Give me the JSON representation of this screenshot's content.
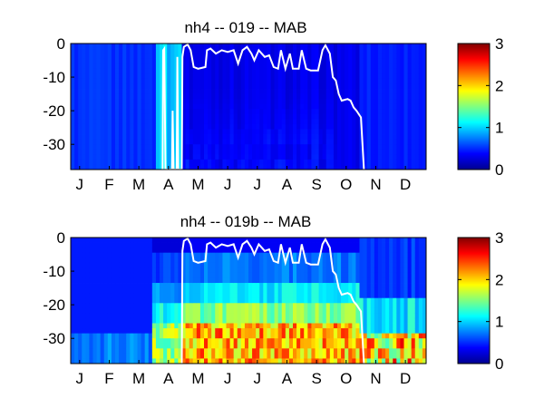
{
  "chart_data": [
    {
      "type": "heatmap",
      "title": "nh4 -- 019 -- MAB",
      "xlabel": "",
      "ylabel": "",
      "x_tick_labels": [
        "J",
        "F",
        "M",
        "A",
        "M",
        "J",
        "J",
        "A",
        "S",
        "O",
        "N",
        "D"
      ],
      "y_tick_labels": [
        "0",
        "-10",
        "-20",
        "-30"
      ],
      "y_ticks": [
        0,
        -10,
        -20,
        -30
      ],
      "ylim": [
        -37.5,
        0
      ],
      "colorbar": {
        "ticks": [
          0,
          1,
          2,
          3
        ],
        "clim": [
          0,
          3
        ],
        "colormap": "jet"
      },
      "contour_line": {
        "color": "#ffffff",
        "points": [
          [
            3.1,
            -37.5
          ],
          [
            3.12,
            -2
          ],
          [
            3.16,
            -1.5
          ],
          [
            3.2,
            -37.5
          ],
          [
            3.42,
            -37.5
          ],
          [
            3.44,
            -20
          ],
          [
            3.47,
            -37.5
          ],
          [
            3.58,
            -37.5
          ],
          [
            3.6,
            -4
          ],
          [
            3.63,
            -37.5
          ],
          [
            3.75,
            -37.5
          ],
          [
            3.77,
            -4
          ],
          [
            3.82,
            -1
          ],
          [
            3.95,
            -0.3
          ],
          [
            4.05,
            -2
          ],
          [
            4.15,
            -7
          ],
          [
            4.3,
            -7.5
          ],
          [
            4.55,
            -7
          ],
          [
            4.6,
            -2
          ],
          [
            4.72,
            -1.5
          ],
          [
            4.9,
            -3
          ],
          [
            5.1,
            -2
          ],
          [
            5.3,
            -2.5
          ],
          [
            5.5,
            -2
          ],
          [
            5.65,
            -6
          ],
          [
            5.8,
            -2
          ],
          [
            5.95,
            -1
          ],
          [
            6.1,
            -3
          ],
          [
            6.2,
            -5
          ],
          [
            6.35,
            -2
          ],
          [
            6.55,
            -4
          ],
          [
            6.7,
            -3.5
          ],
          [
            6.85,
            -7
          ],
          [
            7.0,
            -7.5
          ],
          [
            7.1,
            -2
          ],
          [
            7.25,
            -7.5
          ],
          [
            7.4,
            -3
          ],
          [
            7.5,
            -7.5
          ],
          [
            7.7,
            -7.5
          ],
          [
            7.8,
            -2
          ],
          [
            7.95,
            -7.5
          ],
          [
            8.1,
            -8
          ],
          [
            8.35,
            -8
          ],
          [
            8.5,
            -2
          ],
          [
            8.6,
            -0.5
          ],
          [
            8.75,
            -3
          ],
          [
            8.85,
            -10
          ],
          [
            8.95,
            -11
          ],
          [
            9.05,
            -15
          ],
          [
            9.15,
            -17
          ],
          [
            9.35,
            -16.5
          ],
          [
            9.45,
            -17
          ],
          [
            9.55,
            -19
          ],
          [
            9.65,
            -20
          ],
          [
            9.8,
            -22
          ],
          [
            9.9,
            -37.5
          ]
        ]
      }
    },
    {
      "type": "heatmap",
      "title": "nh4 -- 019b -- MAB",
      "xlabel": "",
      "ylabel": "",
      "x_tick_labels": [
        "J",
        "F",
        "M",
        "A",
        "M",
        "J",
        "J",
        "A",
        "S",
        "O",
        "N",
        "D"
      ],
      "y_tick_labels": [
        "0",
        "-10",
        "-20",
        "-30"
      ],
      "y_ticks": [
        0,
        -10,
        -20,
        -30
      ],
      "ylim": [
        -37.5,
        0
      ],
      "colorbar": {
        "ticks": [
          0,
          1,
          2,
          3
        ],
        "clim": [
          0,
          3
        ],
        "colormap": "jet"
      },
      "contour_line": {
        "color": "#ffffff",
        "points": [
          [
            3.75,
            -37.5
          ],
          [
            3.77,
            -4
          ],
          [
            3.82,
            -1
          ],
          [
            3.95,
            -0.3
          ],
          [
            4.05,
            -2
          ],
          [
            4.15,
            -7
          ],
          [
            4.3,
            -7.5
          ],
          [
            4.55,
            -7
          ],
          [
            4.6,
            -2
          ],
          [
            4.72,
            -1.5
          ],
          [
            4.9,
            -3
          ],
          [
            5.1,
            -2
          ],
          [
            5.3,
            -2.5
          ],
          [
            5.5,
            -2
          ],
          [
            5.65,
            -6
          ],
          [
            5.8,
            -2
          ],
          [
            5.95,
            -1
          ],
          [
            6.1,
            -3
          ],
          [
            6.2,
            -5
          ],
          [
            6.35,
            -2
          ],
          [
            6.55,
            -4
          ],
          [
            6.7,
            -3.5
          ],
          [
            6.85,
            -7
          ],
          [
            7.0,
            -7.5
          ],
          [
            7.1,
            -2
          ],
          [
            7.25,
            -7.5
          ],
          [
            7.4,
            -3
          ],
          [
            7.5,
            -7.5
          ],
          [
            7.7,
            -7.5
          ],
          [
            7.8,
            -2
          ],
          [
            7.95,
            -7.5
          ],
          [
            8.1,
            -8
          ],
          [
            8.35,
            -8
          ],
          [
            8.5,
            -2
          ],
          [
            8.6,
            -0.5
          ],
          [
            8.75,
            -3
          ],
          [
            8.85,
            -10
          ],
          [
            8.95,
            -11
          ],
          [
            9.05,
            -15
          ],
          [
            9.15,
            -17
          ],
          [
            9.35,
            -16.5
          ],
          [
            9.45,
            -17
          ],
          [
            9.55,
            -19
          ],
          [
            9.65,
            -20
          ],
          [
            9.8,
            -22
          ],
          [
            9.9,
            -37.5
          ]
        ]
      }
    }
  ]
}
